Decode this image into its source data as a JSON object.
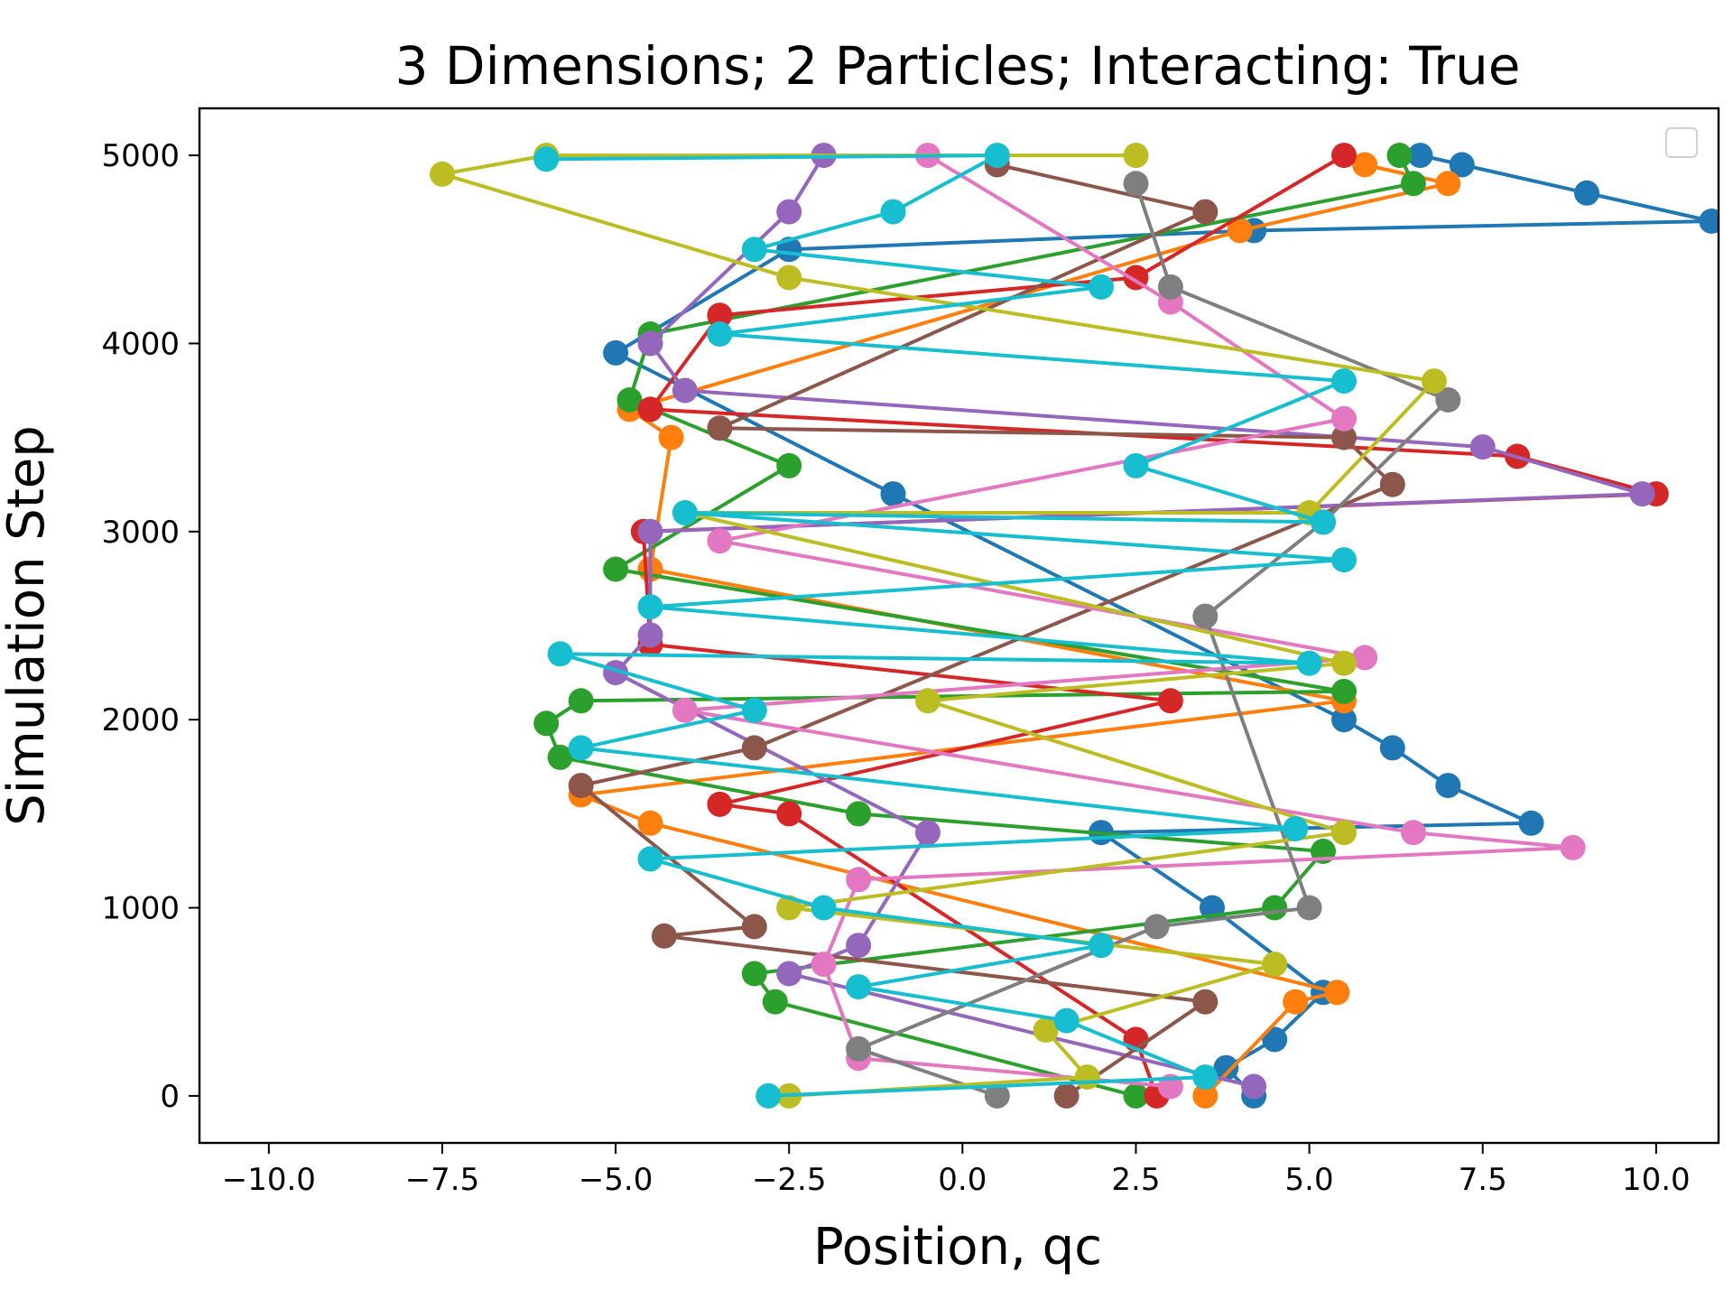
{
  "chart_data": {
    "type": "scatter",
    "title": "3 Dimensions; 2 Particles; Interacting: True",
    "xlabel": "Position, qc",
    "ylabel": "Simulation Step",
    "xlim": [
      -11.0,
      10.9
    ],
    "ylim": [
      -250,
      5250
    ],
    "xticks": [
      -10.0,
      -7.5,
      -5.0,
      -2.5,
      0.0,
      2.5,
      5.0,
      7.5,
      10.0
    ],
    "xtick_labels": [
      "−10.0",
      "−7.5",
      "−5.0",
      "−2.5",
      "0.0",
      "2.5",
      "5.0",
      "7.5",
      "10.0"
    ],
    "yticks": [
      0,
      1000,
      2000,
      3000,
      4000,
      5000
    ],
    "ytick_labels": [
      "0",
      "1000",
      "2000",
      "3000",
      "4000",
      "5000"
    ],
    "grid": false,
    "legend": {
      "position": "upper-right",
      "entries": []
    },
    "series_colors": [
      "#1f77b4",
      "#ff7f0e",
      "#2ca02c",
      "#d62728",
      "#9467bd",
      "#8c564b",
      "#e377c2",
      "#7f7f7f",
      "#bcbd22",
      "#17becf"
    ],
    "series": [
      {
        "color": "#1f77b4",
        "points": [
          [
            4.2,
            0
          ],
          [
            3.8,
            150
          ],
          [
            4.5,
            300
          ],
          [
            5.2,
            550
          ],
          [
            3.6,
            1000
          ],
          [
            2.0,
            1400
          ],
          [
            8.2,
            1450
          ],
          [
            7.0,
            1650
          ],
          [
            6.2,
            1850
          ],
          [
            5.5,
            2000
          ],
          [
            -1.0,
            3200
          ],
          [
            -5.0,
            3950
          ],
          [
            -2.5,
            4500
          ],
          [
            4.2,
            4600
          ],
          [
            10.8,
            4650
          ],
          [
            9.0,
            4800
          ],
          [
            7.2,
            4950
          ],
          [
            6.6,
            5000
          ]
        ]
      },
      {
        "color": "#ff7f0e",
        "points": [
          [
            3.5,
            0
          ],
          [
            4.8,
            500
          ],
          [
            5.4,
            550
          ],
          [
            -4.5,
            1450
          ],
          [
            -5.5,
            1600
          ],
          [
            5.5,
            2100
          ],
          [
            -4.5,
            2800
          ],
          [
            -4.2,
            3500
          ],
          [
            -4.8,
            3650
          ],
          [
            4.0,
            4600
          ],
          [
            7.0,
            4850
          ],
          [
            5.8,
            4950
          ]
        ]
      },
      {
        "color": "#2ca02c",
        "points": [
          [
            2.5,
            0
          ],
          [
            -2.7,
            500
          ],
          [
            -3.0,
            650
          ],
          [
            4.5,
            1000
          ],
          [
            5.2,
            1300
          ],
          [
            -1.5,
            1500
          ],
          [
            -5.8,
            1800
          ],
          [
            -6.0,
            1980
          ],
          [
            -5.5,
            2100
          ],
          [
            5.5,
            2150
          ],
          [
            -5.0,
            2800
          ],
          [
            -2.5,
            3350
          ],
          [
            -4.8,
            3700
          ],
          [
            -4.5,
            4050
          ],
          [
            6.5,
            4850
          ],
          [
            6.3,
            5000
          ]
        ]
      },
      {
        "color": "#d62728",
        "points": [
          [
            2.8,
            0
          ],
          [
            2.5,
            300
          ],
          [
            -2.5,
            1500
          ],
          [
            -3.5,
            1550
          ],
          [
            3.0,
            2100
          ],
          [
            -4.5,
            2400
          ],
          [
            -4.6,
            3000
          ],
          [
            10.0,
            3200
          ],
          [
            8.0,
            3400
          ],
          [
            -4.5,
            3650
          ],
          [
            -3.5,
            4150
          ],
          [
            2.5,
            4350
          ],
          [
            5.5,
            5000
          ]
        ]
      },
      {
        "color": "#9467bd",
        "points": [
          [
            4.2,
            50
          ],
          [
            -2.5,
            650
          ],
          [
            -1.5,
            800
          ],
          [
            -0.5,
            1400
          ],
          [
            -5.0,
            2250
          ],
          [
            -4.5,
            2450
          ],
          [
            -4.5,
            3000
          ],
          [
            9.8,
            3200
          ],
          [
            7.5,
            3450
          ],
          [
            -4.0,
            3750
          ],
          [
            -4.5,
            4000
          ],
          [
            -2.5,
            4700
          ],
          [
            -2.0,
            5000
          ]
        ]
      },
      {
        "color": "#8c564b",
        "points": [
          [
            1.5,
            0
          ],
          [
            3.5,
            500
          ],
          [
            -4.3,
            850
          ],
          [
            -3.0,
            900
          ],
          [
            -5.5,
            1650
          ],
          [
            -3.0,
            1850
          ],
          [
            6.2,
            3250
          ],
          [
            5.5,
            3500
          ],
          [
            -3.5,
            3550
          ],
          [
            3.5,
            4700
          ],
          [
            0.5,
            4950
          ]
        ]
      },
      {
        "color": "#e377c2",
        "points": [
          [
            3.0,
            50
          ],
          [
            -1.5,
            200
          ],
          [
            -2.0,
            700
          ],
          [
            -1.5,
            1150
          ],
          [
            8.8,
            1320
          ],
          [
            6.5,
            1400
          ],
          [
            -4.0,
            2050
          ],
          [
            5.8,
            2330
          ],
          [
            -3.5,
            2950
          ],
          [
            5.5,
            3600
          ],
          [
            3.0,
            4220
          ],
          [
            -0.5,
            5000
          ]
        ]
      },
      {
        "color": "#7f7f7f",
        "points": [
          [
            0.5,
            0
          ],
          [
            -1.5,
            250
          ],
          [
            2.8,
            900
          ],
          [
            5.0,
            1000
          ],
          [
            3.5,
            2550
          ],
          [
            5.2,
            3050
          ],
          [
            7.0,
            3700
          ],
          [
            3.0,
            4300
          ],
          [
            2.5,
            4850
          ]
        ]
      },
      {
        "color": "#bcbd22",
        "points": [
          [
            -2.5,
            0
          ],
          [
            1.8,
            100
          ],
          [
            1.2,
            350
          ],
          [
            4.5,
            700
          ],
          [
            -2.5,
            1000
          ],
          [
            5.5,
            1400
          ],
          [
            -0.5,
            2100
          ],
          [
            5.5,
            2300
          ],
          [
            -4.0,
            3100
          ],
          [
            5.0,
            3100
          ],
          [
            6.8,
            3800
          ],
          [
            -2.5,
            4350
          ],
          [
            -7.5,
            4900
          ],
          [
            -6.0,
            5000
          ],
          [
            2.5,
            5000
          ]
        ]
      },
      {
        "color": "#17becf",
        "points": [
          [
            -2.8,
            0
          ],
          [
            3.5,
            100
          ],
          [
            1.5,
            400
          ],
          [
            -1.5,
            580
          ],
          [
            2.0,
            800
          ],
          [
            -2.0,
            1000
          ],
          [
            -4.5,
            1260
          ],
          [
            4.8,
            1420
          ],
          [
            -5.5,
            1850
          ],
          [
            -3.0,
            2050
          ],
          [
            -5.8,
            2350
          ],
          [
            5.0,
            2300
          ],
          [
            -4.5,
            2600
          ],
          [
            5.5,
            2850
          ],
          [
            -4.0,
            3100
          ],
          [
            5.2,
            3050
          ],
          [
            2.5,
            3350
          ],
          [
            5.5,
            3800
          ],
          [
            -3.5,
            4050
          ],
          [
            2.0,
            4300
          ],
          [
            -3.0,
            4500
          ],
          [
            -1.0,
            4700
          ],
          [
            0.5,
            5000
          ],
          [
            -6.0,
            4980
          ]
        ]
      }
    ]
  }
}
